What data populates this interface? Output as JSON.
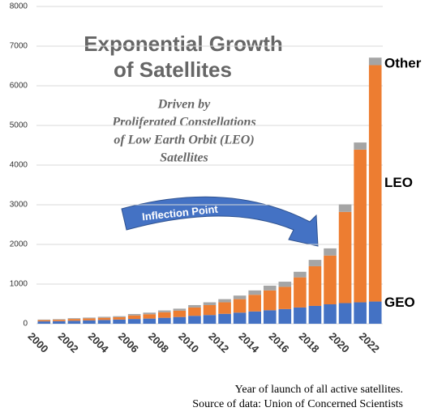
{
  "chart_data": {
    "type": "stacked_bar",
    "title": [
      "Exponential Growth",
      "of Satellites"
    ],
    "subtitle": [
      "Driven by",
      "Proliferated Constellations",
      "of Low Earth Orbit (LEO)",
      "Satellites"
    ],
    "annotation": "Inflection Point",
    "notes": [
      "Year of launch of all active satellites.",
      "Source of data: Union of Concerned Scientists"
    ],
    "categories": [
      "2000",
      null,
      "2002",
      null,
      "2004",
      null,
      "2006",
      null,
      "2008",
      null,
      "2010",
      null,
      "2012",
      null,
      "2014",
      null,
      "2016",
      null,
      "2018",
      null,
      "2020",
      null,
      "2022"
    ],
    "series": [
      {
        "name": "GEO",
        "color": "#4472c4",
        "values": [
          60,
          65,
          75,
          85,
          95,
          105,
          120,
          130,
          150,
          170,
          200,
          220,
          250,
          280,
          310,
          340,
          370,
          410,
          450,
          490,
          520,
          540,
          560
        ]
      },
      {
        "name": "LEO",
        "color": "#ed7d31",
        "values": [
          30,
          35,
          45,
          50,
          55,
          60,
          90,
          110,
          140,
          160,
          210,
          250,
          290,
          340,
          420,
          500,
          560,
          760,
          1000,
          1230,
          2300,
          3850,
          5960
        ]
      },
      {
        "name": "Other",
        "color": "#a5a5a5",
        "values": [
          15,
          15,
          20,
          20,
          25,
          25,
          35,
          40,
          45,
          50,
          60,
          70,
          80,
          90,
          110,
          120,
          130,
          140,
          160,
          180,
          190,
          180,
          190
        ]
      }
    ],
    "ylim": [
      0,
      8000
    ],
    "yticks": [
      0,
      1000,
      2000,
      3000,
      4000,
      5000,
      6000,
      7000,
      8000
    ],
    "grid": true
  }
}
